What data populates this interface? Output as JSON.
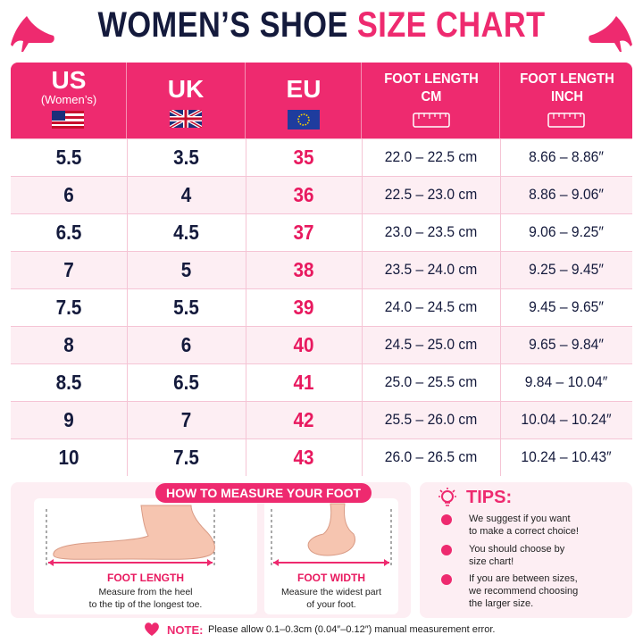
{
  "header": {
    "title_main": "WOMEN’S SHOE",
    "title_accent": "SIZE CHART"
  },
  "table": {
    "columns": [
      {
        "label": "US",
        "sublabel": "(Women’s)"
      },
      {
        "label": "UK"
      },
      {
        "label": "EU"
      },
      {
        "label": "FOOT LENGTH",
        "sublabel": "CM"
      },
      {
        "label": "FOOT LENGTH",
        "sublabel": "INCH"
      }
    ],
    "rows": [
      [
        "5.5",
        "3.5",
        "35",
        "22.0 – 22.5 cm",
        "8.66 – 8.86″"
      ],
      [
        "6",
        "4",
        "36",
        "22.5 – 23.0 cm",
        "8.86 – 9.06″"
      ],
      [
        "6.5",
        "4.5",
        "37",
        "23.0 – 23.5 cm",
        "9.06 – 9.25″"
      ],
      [
        "7",
        "5",
        "38",
        "23.5 – 24.0 cm",
        "9.25 – 9.45″"
      ],
      [
        "7.5",
        "5.5",
        "39",
        "24.0 – 24.5 cm",
        "9.45 – 9.65″"
      ],
      [
        "8",
        "6",
        "40",
        "24.5 – 25.0 cm",
        "9.65 – 9.84″"
      ],
      [
        "8.5",
        "6.5",
        "41",
        "25.0 – 25.5 cm",
        "9.84 – 10.04″"
      ],
      [
        "9",
        "7",
        "42",
        "25.5 – 26.0 cm",
        "10.04 – 10.24″"
      ],
      [
        "10",
        "7.5",
        "43",
        "26.0 – 26.5 cm",
        "10.24 – 10.43″"
      ]
    ]
  },
  "measure": {
    "title": "HOW TO MEASURE YOUR FOOT",
    "length": {
      "label": "FOOT LENGTH",
      "lines": [
        "Measure from the heel",
        "to the tip of the longest toe."
      ]
    },
    "width": {
      "label": "FOOT WIDTH",
      "lines": [
        "Measure the widest part",
        "of your foot."
      ]
    }
  },
  "tips": {
    "title": "TIPS:",
    "items": [
      [
        "We suggest if you want",
        "to make a correct choice!"
      ],
      [
        "You should choose by",
        "size chart!"
      ],
      [
        "If you are between sizes,",
        "we recommend choosing",
        "the larger size."
      ]
    ]
  },
  "note": {
    "label": "NOTE:",
    "text": "Please allow 0.1–0.3cm (0.04″–0.12″) manual measurement error."
  }
}
